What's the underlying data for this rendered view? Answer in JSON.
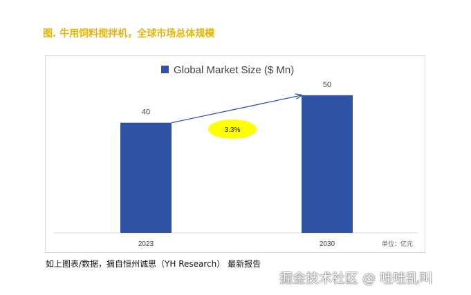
{
  "figure_title": "图. 牛用饲料搅拌机，全球市场总体规模",
  "caption": "如上图表/数据，摘自恒州诚思（YH Research） 最新报告",
  "watermark": "掘金技术社区 @ 哇哇乱叫",
  "colors": {
    "bar": "#2f53a4",
    "callout": "#ffff00",
    "arrow": "#2f53a4",
    "title": "#e8b400"
  },
  "chart_data": {
    "type": "bar",
    "legend": "Global Market Size ($ Mn)",
    "categories": [
      "2023",
      "2030"
    ],
    "values": [
      40,
      50
    ],
    "data_labels": [
      "40",
      "50"
    ],
    "ylim": [
      0,
      60
    ],
    "growth_label": "3.3%",
    "unit_note": "单位：亿元",
    "xlabel": "",
    "ylabel": ""
  }
}
